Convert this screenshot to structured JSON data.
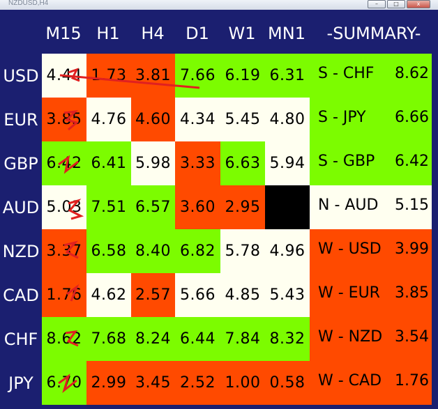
{
  "window": {
    "title": "NZDUSD,H4",
    "min_glyph": "–",
    "max_glyph": "□",
    "close_glyph": "x"
  },
  "columns": [
    "M15",
    "H1",
    "H4",
    "D1",
    "W1",
    "MN1"
  ],
  "summary_header": "-SUMMARY-",
  "colors": {
    "green": "#7cfc00",
    "orange": "#ff4a00",
    "white": "#fffff0",
    "black": "#000000",
    "panel": "#1b1f70"
  },
  "rows": [
    {
      "label": "USD",
      "cells": [
        {
          "v": "4.44",
          "c": "white"
        },
        {
          "v": "1.73",
          "c": "orange"
        },
        {
          "v": "3.81",
          "c": "orange"
        },
        {
          "v": "7.66",
          "c": "green"
        },
        {
          "v": "6.19",
          "c": "green"
        },
        {
          "v": "6.31",
          "c": "green"
        }
      ]
    },
    {
      "label": "EUR",
      "cells": [
        {
          "v": "3.85",
          "c": "orange"
        },
        {
          "v": "4.76",
          "c": "white"
        },
        {
          "v": "4.60",
          "c": "orange"
        },
        {
          "v": "4.34",
          "c": "white"
        },
        {
          "v": "5.45",
          "c": "white"
        },
        {
          "v": "4.80",
          "c": "white"
        }
      ]
    },
    {
      "label": "GBP",
      "cells": [
        {
          "v": "6.42",
          "c": "green"
        },
        {
          "v": "6.41",
          "c": "green"
        },
        {
          "v": "5.98",
          "c": "white"
        },
        {
          "v": "3.33",
          "c": "orange"
        },
        {
          "v": "6.63",
          "c": "green"
        },
        {
          "v": "5.94",
          "c": "white"
        }
      ]
    },
    {
      "label": "AUD",
      "cells": [
        {
          "v": "5.03",
          "c": "white"
        },
        {
          "v": "7.51",
          "c": "green"
        },
        {
          "v": "6.57",
          "c": "green"
        },
        {
          "v": "3.60",
          "c": "orange"
        },
        {
          "v": "2.95",
          "c": "orange"
        },
        {
          "v": "",
          "c": "black"
        }
      ]
    },
    {
      "label": "NZD",
      "cells": [
        {
          "v": "3.37",
          "c": "orange"
        },
        {
          "v": "6.58",
          "c": "green"
        },
        {
          "v": "8.40",
          "c": "green"
        },
        {
          "v": "6.82",
          "c": "green"
        },
        {
          "v": "5.78",
          "c": "white"
        },
        {
          "v": "4.96",
          "c": "white"
        }
      ]
    },
    {
      "label": "CAD",
      "cells": [
        {
          "v": "1.76",
          "c": "orange"
        },
        {
          "v": "4.62",
          "c": "white"
        },
        {
          "v": "2.57",
          "c": "orange"
        },
        {
          "v": "5.66",
          "c": "white"
        },
        {
          "v": "4.85",
          "c": "white"
        },
        {
          "v": "5.43",
          "c": "white"
        }
      ]
    },
    {
      "label": "CHF",
      "cells": [
        {
          "v": "8.62",
          "c": "green"
        },
        {
          "v": "7.68",
          "c": "green"
        },
        {
          "v": "8.24",
          "c": "green"
        },
        {
          "v": "6.44",
          "c": "green"
        },
        {
          "v": "7.84",
          "c": "green"
        },
        {
          "v": "8.32",
          "c": "green"
        }
      ]
    },
    {
      "label": "JPY",
      "cells": [
        {
          "v": "6.70",
          "c": "green"
        },
        {
          "v": "2.99",
          "c": "orange"
        },
        {
          "v": "3.45",
          "c": "orange"
        },
        {
          "v": "2.52",
          "c": "orange"
        },
        {
          "v": "1.00",
          "c": "orange"
        },
        {
          "v": "0.58",
          "c": "orange"
        }
      ]
    }
  ],
  "summary": [
    {
      "pair": "S - CHF",
      "value": "8.62",
      "c": "green"
    },
    {
      "pair": "S - JPY",
      "value": "6.66",
      "c": "green"
    },
    {
      "pair": "S - GBP",
      "value": "6.42",
      "c": "green"
    },
    {
      "pair": "N - AUD",
      "value": "5.15",
      "c": "white"
    },
    {
      "pair": "W - USD",
      "value": "3.99",
      "c": "orange"
    },
    {
      "pair": "W - EUR",
      "value": "3.85",
      "c": "orange"
    },
    {
      "pair": "W - NZD",
      "value": "3.54",
      "c": "orange"
    },
    {
      "pair": "W - CAD",
      "value": "1.76",
      "c": "orange"
    }
  ]
}
